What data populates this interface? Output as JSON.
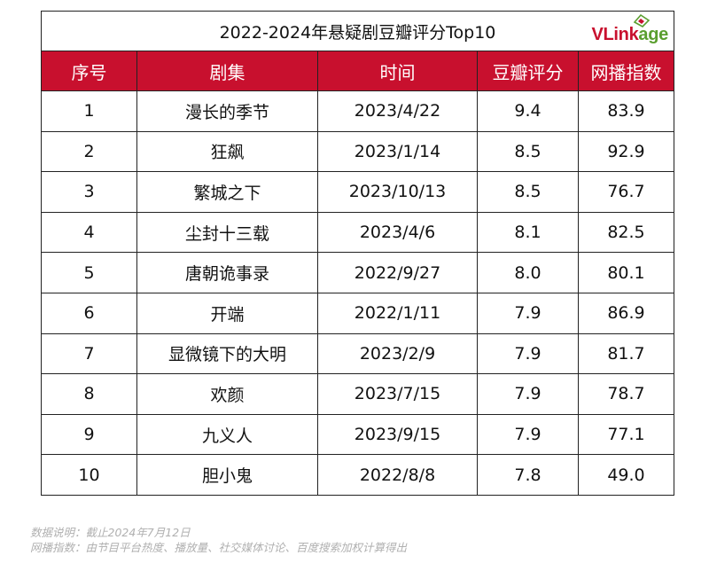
{
  "chart_data": {
    "type": "table",
    "title": "2022-2024年悬疑剧豆瓣评分Top10",
    "columns": [
      "序号",
      "剧集",
      "时间",
      "豆瓣评分",
      "网播指数"
    ],
    "rows": [
      [
        "1",
        "漫长的季节",
        "2023/4/22",
        "9.4",
        "83.9"
      ],
      [
        "2",
        "狂飙",
        "2023/1/14",
        "8.5",
        "92.9"
      ],
      [
        "3",
        "繁城之下",
        "2023/10/13",
        "8.5",
        "76.7"
      ],
      [
        "4",
        "尘封十三载",
        "2023/4/6",
        "8.1",
        "82.5"
      ],
      [
        "5",
        "唐朝诡事录",
        "2022/9/27",
        "8.0",
        "80.1"
      ],
      [
        "6",
        "开端",
        "2022/1/11",
        "7.9",
        "86.9"
      ],
      [
        "7",
        "显微镜下的大明",
        "2023/2/9",
        "7.9",
        "81.7"
      ],
      [
        "8",
        "欢颜",
        "2023/7/15",
        "7.9",
        "78.7"
      ],
      [
        "9",
        "九义人",
        "2023/9/15",
        "7.9",
        "77.1"
      ],
      [
        "10",
        "胆小鬼",
        "2022/8/8",
        "7.8",
        "49.0"
      ]
    ]
  },
  "brand": {
    "part1": "VLink",
    "part2": "age"
  },
  "colors": {
    "header_bg": "#c8102e",
    "header_text": "#ffffff",
    "brand_red": "#c8102e",
    "brand_green": "#5a9e2f"
  },
  "notes": {
    "line1": "数据说明：截止2024年7月12日",
    "line2": "网播指数：由节目平台热度、播放量、社交媒体讨论、百度搜索加权计算得出"
  }
}
